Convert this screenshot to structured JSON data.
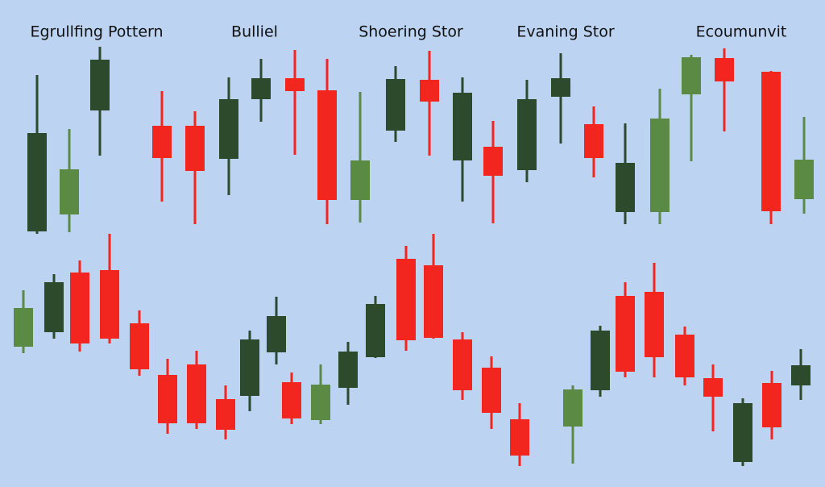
{
  "labels": [
    "Egrullfing Pottern",
    "Bulliel",
    "Shoering Stor",
    "Evaning Stor",
    "Ecoumunvit"
  ]
}
